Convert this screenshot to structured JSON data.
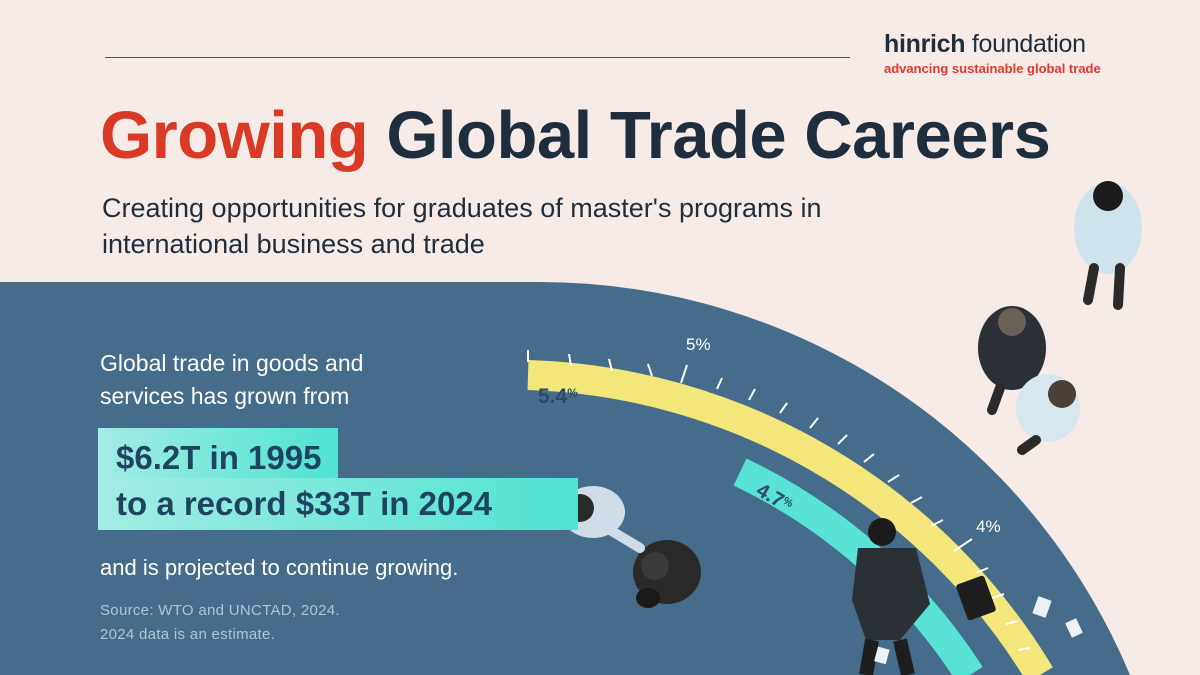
{
  "brand": {
    "name_bold": "hinrich",
    "name_rest": " foundation",
    "tagline": "advancing sustainable global trade"
  },
  "headline": {
    "accent": "Growing",
    "rest": " Global Trade Careers"
  },
  "subtitle": "Creating opportunities for graduates of master's programs in international business and trade",
  "intro": "Global trade in goods and services has grown from",
  "highlight": {
    "line1": "$6.2T in 1995",
    "line2": "to a record $33T in 2024"
  },
  "outro": "and is projected to continue growing.",
  "source": {
    "line1": "Source: WTO and UNCTAD, 2024.",
    "line2": "2024 data is an estimate."
  },
  "gauge": {
    "tick_labels": [
      "5%",
      "4%"
    ],
    "bands": [
      {
        "label": "5.4",
        "unit": "%",
        "color": "#f3e67a"
      },
      {
        "label": "4.7",
        "unit": "%",
        "color": "#58e3d4"
      }
    ]
  },
  "colors": {
    "panel": "#456c8a",
    "accent": "#d93a25",
    "navy": "#1f2e3d",
    "background": "#f6ebe7"
  }
}
